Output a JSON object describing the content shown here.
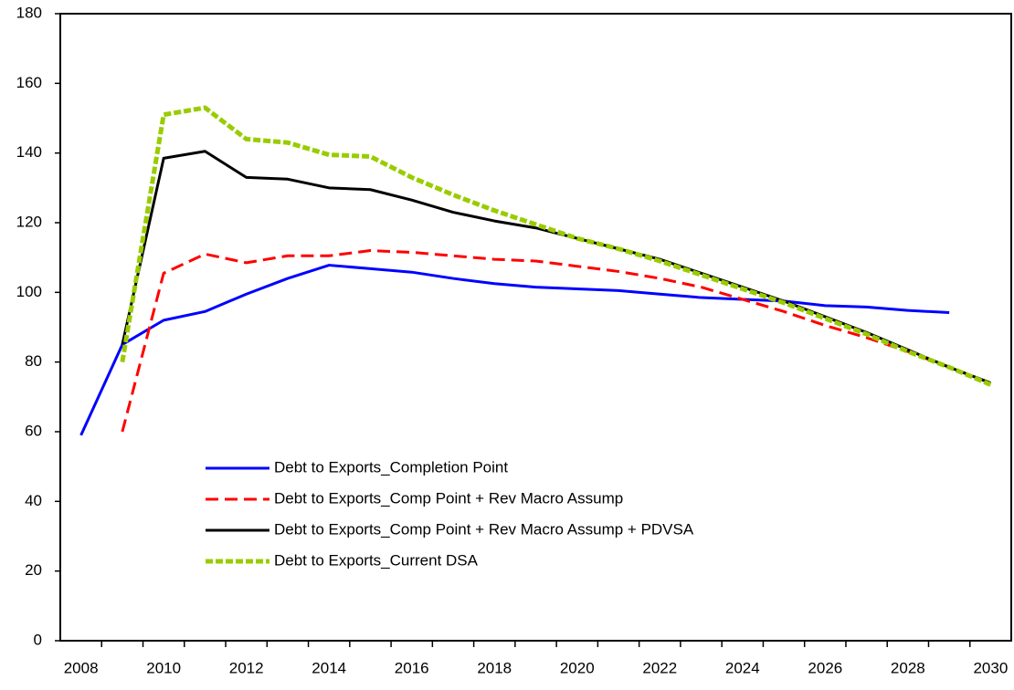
{
  "chart_data": {
    "type": "line",
    "categories": [
      "2008",
      null,
      "2010",
      null,
      "2012",
      null,
      "2014",
      null,
      "2016",
      null,
      "2018",
      null,
      "2020",
      null,
      "2022",
      null,
      "2024",
      null,
      "2026",
      null,
      "2028",
      null,
      "2030"
    ],
    "series": [
      {
        "name": "Debt to Exports_Completion Point",
        "color": "#0000ff",
        "dash": "solid",
        "values": [
          59,
          85,
          92,
          94.5,
          99.5,
          104,
          107.8,
          106.8,
          105.8,
          104,
          102.5,
          101.5,
          101,
          100.5,
          99.5,
          98.5,
          98,
          97.5,
          96.2,
          95.8,
          94.8,
          94.2,
          null
        ]
      },
      {
        "name": "Debt to Exports_Comp Point + Rev Macro Assump",
        "color": "#ff0000",
        "dash": "dashed",
        "values": [
          null,
          60,
          105.5,
          111,
          108.5,
          110.5,
          110.5,
          112,
          111.5,
          110.5,
          109.5,
          109,
          107.5,
          106,
          104,
          101.5,
          98,
          94.5,
          90.5,
          87,
          83,
          78.5,
          74
        ]
      },
      {
        "name": "Debt to Exports_Comp Point + Rev Macro Assump + PDVSA",
        "color": "#000000",
        "dash": "solid",
        "values": [
          null,
          85,
          138.5,
          140.5,
          133,
          132.5,
          130,
          129.5,
          126.5,
          123,
          120.5,
          118.5,
          115.5,
          112.5,
          109.5,
          105.5,
          101.5,
          97.5,
          93,
          88.5,
          83.5,
          78.5,
          74
        ]
      },
      {
        "name": "Debt to Exports_Current DSA",
        "color": "#99cc00",
        "dash": "dotted",
        "values": [
          null,
          80,
          151,
          153,
          144,
          143,
          139.5,
          139,
          133,
          128,
          123.5,
          119.5,
          115.5,
          112.5,
          109,
          105,
          101,
          97,
          92.5,
          88,
          83,
          78.5,
          73.5
        ]
      }
    ],
    "ylim": [
      0,
      180
    ],
    "yticks": [
      0,
      20,
      40,
      60,
      80,
      100,
      120,
      140,
      160,
      180
    ],
    "grid": false,
    "legend": "lower-left"
  }
}
